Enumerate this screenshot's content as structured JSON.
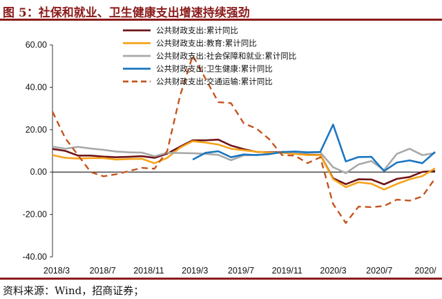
{
  "header": {
    "title": "图 5：社保和就业、卫生健康支出增速持续强劲"
  },
  "footer": {
    "source": "资料来源：Wind，招商证券；"
  },
  "chart_data": {
    "type": "line",
    "title": "图 5：社保和就业、卫生健康支出增速持续强劲",
    "xlabel": "",
    "ylabel": "",
    "ylim": [
      -40,
      60
    ],
    "yticks": [
      -40,
      -20,
      0,
      20,
      40,
      60
    ],
    "ytick_labels": [
      "-40.00",
      "-20.00",
      "0.00",
      "20.00",
      "40.00",
      "60.00"
    ],
    "x_tick_labels": [
      "2018/3",
      "2018/7",
      "2018/11",
      "2019/3",
      "2019/7",
      "2019/11",
      "2020/3",
      "2020/7",
      "2020/"
    ],
    "x": [
      "2018/3",
      "2018/4",
      "2018/5",
      "2018/6",
      "2018/7",
      "2018/8",
      "2018/9",
      "2018/10",
      "2018/11",
      "2018/12",
      "2019/2",
      "2019/3",
      "2019/4",
      "2019/5",
      "2019/6",
      "2019/7",
      "2019/8",
      "2019/9",
      "2019/10",
      "2019/11",
      "2019/12",
      "2020/2",
      "2020/3",
      "2020/4",
      "2020/5",
      "2020/6",
      "2020/7",
      "2020/8",
      "2020/9",
      "2020/10",
      "2020/11"
    ],
    "legend_position": "top",
    "series": [
      {
        "name": "公共财政支出:累计同比",
        "color": "#6e1416",
        "dash": "solid",
        "values": [
          10.9,
          10.0,
          7.8,
          7.8,
          7.3,
          7.0,
          7.2,
          7.5,
          6.7,
          8.7,
          12.0,
          15.0,
          15.0,
          15.3,
          12.5,
          10.8,
          9.5,
          9.3,
          9.4,
          9.0,
          8.1,
          8.1,
          -2.9,
          -5.7,
          -3.4,
          -3.5,
          -5.8,
          -3.2,
          -2.3,
          0.1,
          0.5
        ]
      },
      {
        "name": "公共财政支出:教育:累计同比",
        "color": "#f5a319",
        "dash": "solid",
        "values": [
          8.0,
          6.7,
          6.4,
          6.6,
          6.6,
          5.9,
          6.2,
          6.3,
          4.2,
          6.7,
          11.5,
          14.6,
          13.9,
          13.0,
          11.0,
          10.3,
          9.6,
          9.2,
          9.1,
          8.6,
          8.0,
          8.0,
          -3.3,
          -7.1,
          -4.8,
          -5.5,
          -8.2,
          -5.6,
          -3.4,
          -1.9,
          1.8
        ]
      },
      {
        "name": "公共财政支出:社会保障和就业:累计同比",
        "color": "#a8a8a8",
        "dash": "solid",
        "values": [
          12.0,
          11.0,
          11.9,
          11.1,
          10.5,
          9.7,
          9.3,
          9.2,
          7.5,
          9.1,
          9.0,
          8.9,
          8.6,
          8.1,
          5.6,
          7.9,
          8.1,
          8.4,
          9.6,
          9.3,
          9.0,
          9.3,
          2.3,
          -0.5,
          3.6,
          5.2,
          0.9,
          8.6,
          11.0,
          8.0,
          9.0
        ]
      },
      {
        "name": "公共财政支出:卫生健康:累计同比",
        "color": "#1b76c1",
        "dash": "solid",
        "values": [
          null,
          null,
          null,
          null,
          null,
          null,
          null,
          null,
          null,
          null,
          null,
          5.9,
          9.1,
          9.8,
          7.0,
          8.3,
          8.0,
          8.5,
          9.4,
          9.7,
          9.3,
          9.5,
          22.4,
          5.0,
          7.1,
          7.2,
          0.5,
          4.5,
          5.5,
          4.2,
          9.5
        ]
      },
      {
        "name": "公共财政支出:交通运输:累计同比",
        "color": "#c5531c",
        "dash": "dashed",
        "values": [
          28.5,
          16.0,
          8.0,
          0.0,
          -2.0,
          -1.0,
          0.5,
          2.0,
          1.6,
          10.0,
          36.0,
          55.0,
          44.0,
          33.0,
          32.5,
          23.0,
          20.5,
          15.5,
          8.0,
          7.8,
          4.2,
          7.0,
          -15.0,
          -24.0,
          -16.3,
          -16.5,
          -16.0,
          -13.0,
          -13.5,
          -11.5,
          -3.0
        ]
      }
    ]
  }
}
